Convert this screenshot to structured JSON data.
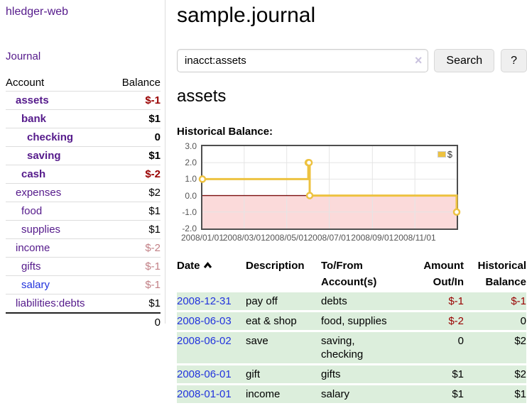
{
  "sidebar": {
    "brand": "hledger-web",
    "nav_journal": "Journal",
    "accounts_table": {
      "header_account": "Account",
      "header_balance": "Balance",
      "rows": [
        {
          "name": "assets",
          "depth": 1,
          "in_account": true,
          "balance": "$-1",
          "balance_tone": "negative-strong",
          "link_color": "purple"
        },
        {
          "name": "bank",
          "depth": 2,
          "in_account": true,
          "balance": "$1",
          "balance_tone": "normal",
          "link_color": "purple"
        },
        {
          "name": "checking",
          "depth": 3,
          "in_account": true,
          "balance": "0",
          "balance_tone": "normal",
          "link_color": "purple"
        },
        {
          "name": "saving",
          "depth": 3,
          "in_account": true,
          "balance": "$1",
          "balance_tone": "normal",
          "link_color": "purple"
        },
        {
          "name": "cash",
          "depth": 2,
          "in_account": true,
          "balance": "$-2",
          "balance_tone": "negative-strong",
          "link_color": "purple"
        },
        {
          "name": "expenses",
          "depth": 1,
          "in_account": false,
          "balance": "$2",
          "balance_tone": "normal",
          "link_color": "purple"
        },
        {
          "name": "food",
          "depth": 2,
          "in_account": false,
          "balance": "$1",
          "balance_tone": "normal",
          "link_color": "purple"
        },
        {
          "name": "supplies",
          "depth": 2,
          "in_account": false,
          "balance": "$1",
          "balance_tone": "normal",
          "link_color": "purple"
        },
        {
          "name": "income",
          "depth": 1,
          "in_account": false,
          "balance": "$-2",
          "balance_tone": "negative-faint",
          "link_color": "purple"
        },
        {
          "name": "gifts",
          "depth": 2,
          "in_account": false,
          "balance": "$-1",
          "balance_tone": "negative-faint",
          "link_color": "purple"
        },
        {
          "name": "salary",
          "depth": 2,
          "in_account": false,
          "balance": "$-1",
          "balance_tone": "negative-faint",
          "link_color": "blue"
        },
        {
          "name": "liabilities:debts",
          "depth": 1,
          "in_account": false,
          "balance": "$1",
          "balance_tone": "normal",
          "link_color": "purple"
        }
      ],
      "total": "0"
    }
  },
  "header": {
    "title": "sample.journal"
  },
  "search": {
    "value": "inacct:assets",
    "clear_icon": "×",
    "search_label": "Search",
    "help_label": "?"
  },
  "account_page": {
    "heading": "assets",
    "chart_label": "Historical Balance:"
  },
  "chart_data": {
    "type": "line",
    "step": true,
    "title": "Historical Balance",
    "series": [
      {
        "name": "$",
        "color": "#edc240",
        "points": [
          [
            "2008-01-01",
            1
          ],
          [
            "2008-06-01",
            2
          ],
          [
            "2008-06-02",
            2
          ],
          [
            "2008-06-03",
            0
          ],
          [
            "2008-12-31",
            -1
          ]
        ]
      }
    ],
    "x_range": [
      "2008-01-01",
      "2008-12-31"
    ],
    "x_ticks": [
      {
        "date": "2008-01-01",
        "label": "2008/01/01"
      },
      {
        "date": "2008-03-01",
        "label": "2008/03/01"
      },
      {
        "date": "2008-05-01",
        "label": "2008/05/01"
      },
      {
        "date": "2008-07-01",
        "label": "2008/07/01"
      },
      {
        "date": "2008-09-01",
        "label": "2008/09/01"
      },
      {
        "date": "2008-11-01",
        "label": "2008/11/01"
      }
    ],
    "y_ticks": [
      {
        "value": 3,
        "label": "3.0"
      },
      {
        "value": 2,
        "label": "2.0"
      },
      {
        "value": 1,
        "label": "1.0"
      },
      {
        "value": 0,
        "label": "0.0"
      },
      {
        "value": -1,
        "label": "-1.0"
      },
      {
        "value": -2,
        "label": "-2.0"
      }
    ],
    "ylim": [
      -2,
      3
    ],
    "grid": true,
    "legend": {
      "position": "top-right",
      "label": "$"
    },
    "negative_region": true
  },
  "register": {
    "headers": {
      "date": "Date",
      "description": "Description",
      "accounts": "To/From Account(s)",
      "amount": "Amount Out/In",
      "balance": "Historical Balance"
    },
    "sort_icon": "caret-up",
    "rows": [
      {
        "date": "2008-12-31",
        "description": "pay off",
        "accounts": "debts",
        "amount": "$-1",
        "amount_tone": "negative",
        "balance": "$-1",
        "balance_tone": "negative"
      },
      {
        "date": "2008-06-03",
        "description": "eat & shop",
        "accounts": "food, supplies",
        "amount": "$-2",
        "amount_tone": "negative",
        "balance": "0",
        "balance_tone": "normal"
      },
      {
        "date": "2008-06-02",
        "description": "save",
        "accounts": "saving, checking",
        "amount": "0",
        "amount_tone": "normal",
        "balance": "$2",
        "balance_tone": "normal"
      },
      {
        "date": "2008-06-01",
        "description": "gift",
        "accounts": "gifts",
        "amount": "$1",
        "amount_tone": "normal",
        "balance": "$2",
        "balance_tone": "normal"
      },
      {
        "date": "2008-01-01",
        "description": "income",
        "accounts": "salary",
        "amount": "$1",
        "amount_tone": "normal",
        "balance": "$1",
        "balance_tone": "normal"
      }
    ]
  },
  "colors": {
    "accent_gold": "#edc240",
    "negative_strong": "#990000",
    "negative_faint": "#c28086",
    "link_purple": "#551a8b",
    "link_blue": "#2233dd",
    "register_row_green": "#dceedc",
    "negative_region_pink": "#fbdada",
    "zero_line_red": "#7c1010",
    "gridline_grey": "#e5e5e5",
    "plot_border_grey": "#4e4e4e"
  }
}
